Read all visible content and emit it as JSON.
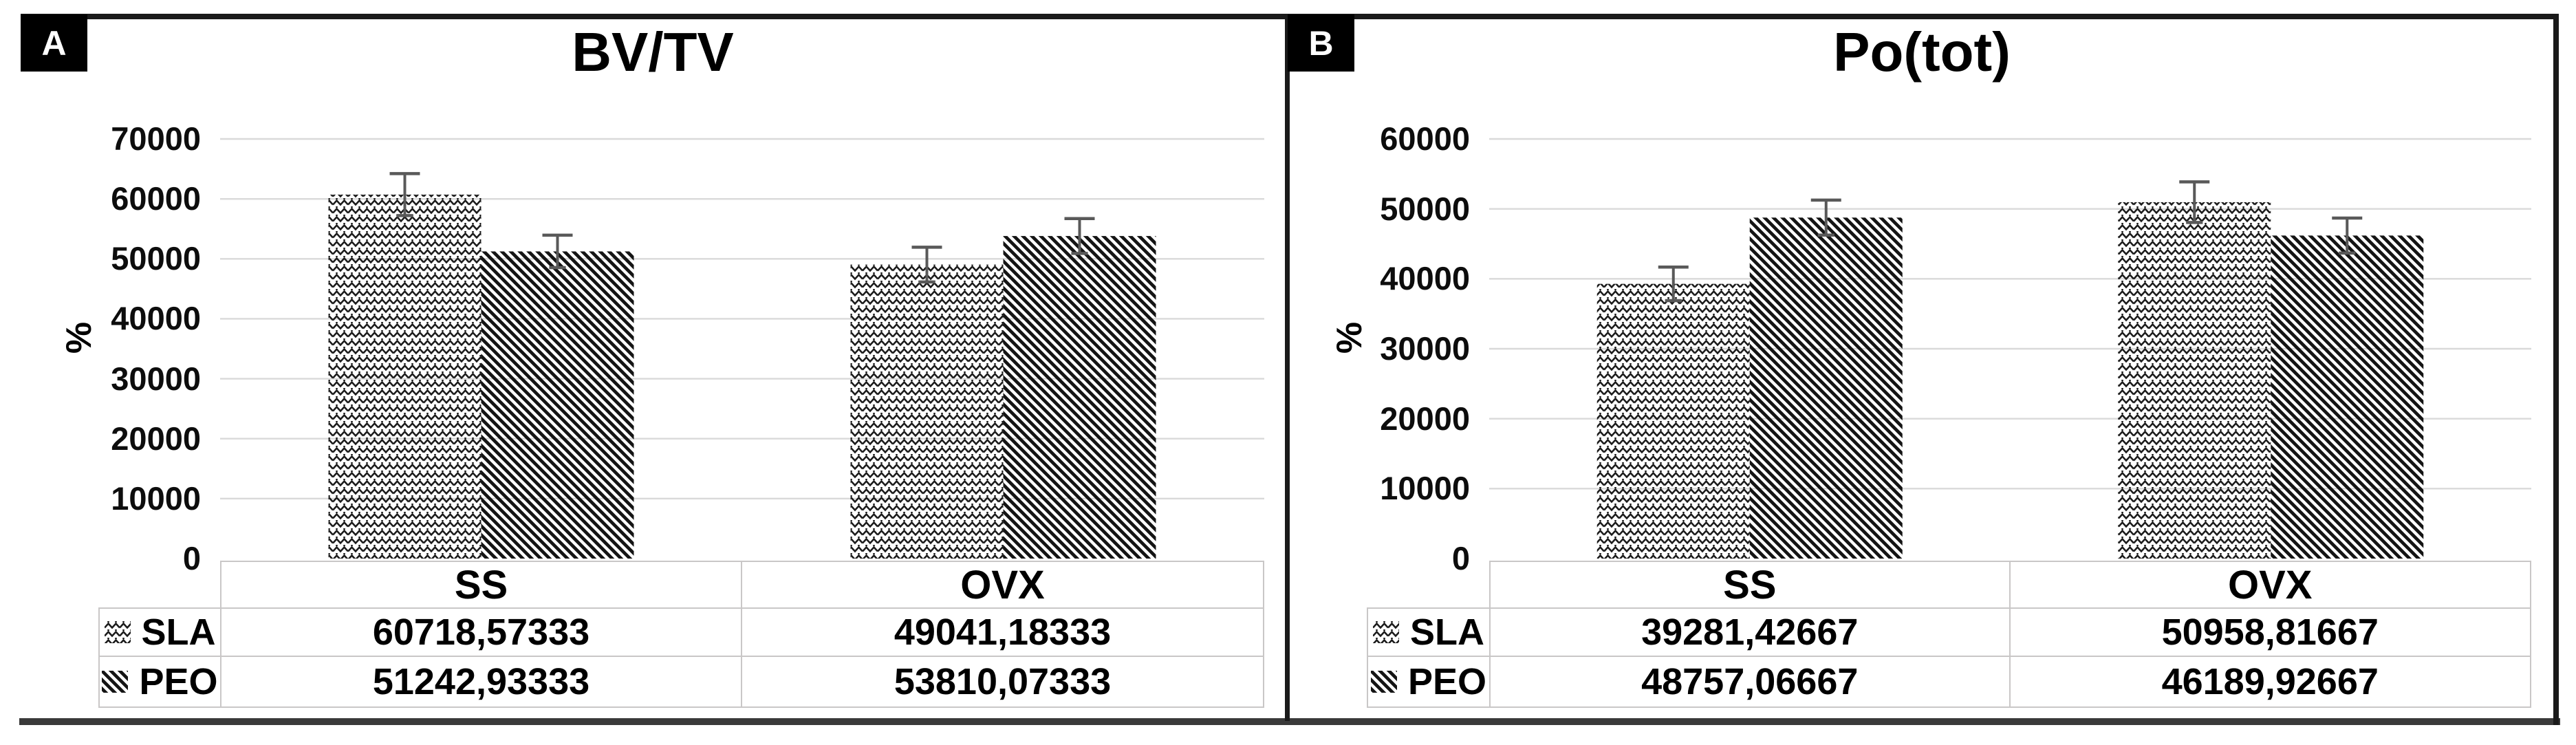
{
  "figure": {
    "panel_letters": [
      "A",
      "B"
    ],
    "background": "#ffffff"
  },
  "colors": {
    "text": "#000000",
    "pattern_ink": "#1a1a1a",
    "gridline": "#d9d9d9",
    "error_bar": "#595959",
    "table_border": "#c9c7c7",
    "frame": "#1a1a1a",
    "bottom_rule": "#3a3a3a",
    "panel_label_bg": "#000000",
    "panel_label_text": "#ffffff"
  },
  "chart_data": [
    {
      "type": "bar",
      "panel_letter": "A",
      "title": "BV/TV",
      "ylabel": "%",
      "xlabel": "",
      "categories": [
        "SS",
        "OVX"
      ],
      "series": [
        {
          "name": "SLA",
          "fill_pattern": "zigzag",
          "values": [
            60718.57333,
            49041.18333
          ],
          "values_display": [
            "60718,57333",
            "49041,18333"
          ],
          "error_up": [
            3500,
            2900
          ]
        },
        {
          "name": "PEO",
          "fill_pattern": "diagonal-down",
          "values": [
            51242.93333,
            53810.07333
          ],
          "values_display": [
            "51242,93333",
            "53810,07333"
          ],
          "error_up": [
            2700,
            2900
          ]
        }
      ],
      "ylim": [
        0,
        70000
      ],
      "ytick_step": 10000,
      "yticks_display": [
        "70000",
        "60000",
        "50000",
        "40000",
        "30000",
        "20000",
        "10000",
        "0"
      ],
      "grid": "horizontal",
      "legend_position": "data-table-left",
      "data_table_shown": true
    },
    {
      "type": "bar",
      "panel_letter": "B",
      "title": "Po(tot)",
      "ylabel": "%",
      "xlabel": "",
      "categories": [
        "SS",
        "OVX"
      ],
      "series": [
        {
          "name": "SLA",
          "fill_pattern": "zigzag",
          "values": [
            39281.42667,
            50958.81667
          ],
          "values_display": [
            "39281,42667",
            "50958,81667"
          ],
          "error_up": [
            2400,
            2900
          ]
        },
        {
          "name": "PEO",
          "fill_pattern": "diagonal-down",
          "values": [
            48757.06667,
            46189.92667
          ],
          "values_display": [
            "48757,06667",
            "46189,92667"
          ],
          "error_up": [
            2500,
            2500
          ]
        }
      ],
      "ylim": [
        0,
        60000
      ],
      "ytick_step": 10000,
      "yticks_display": [
        "60000",
        "50000",
        "40000",
        "30000",
        "20000",
        "10000",
        "0"
      ],
      "grid": "horizontal",
      "legend_position": "data-table-left",
      "data_table_shown": true
    }
  ]
}
